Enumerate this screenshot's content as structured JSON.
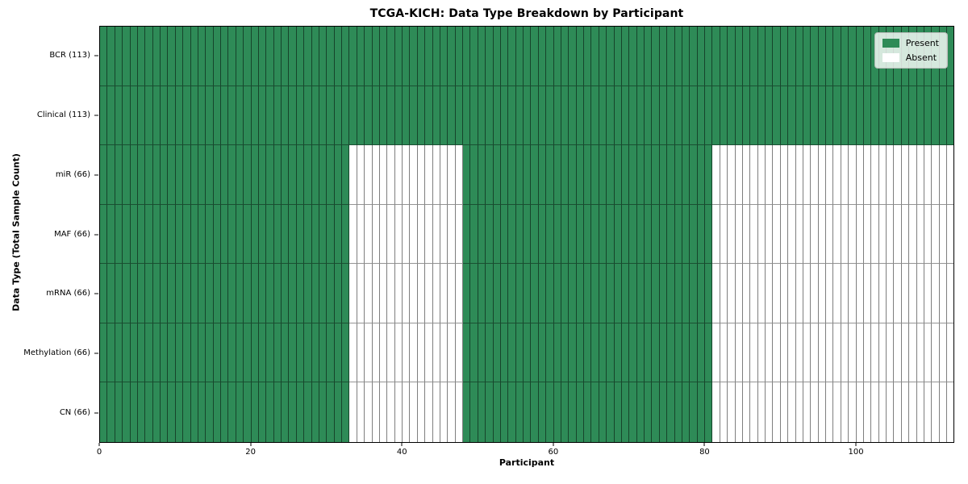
{
  "chart_data": {
    "type": "heatmap",
    "title": "TCGA-KICH: Data Type Breakdown by Participant",
    "xlabel": "Participant",
    "ylabel": "Data Type (Total Sample Count)",
    "n_participants": 113,
    "x_axis": {
      "min": 0,
      "max": 113,
      "ticks": [
        0,
        20,
        40,
        60,
        80,
        100
      ]
    },
    "rows": [
      {
        "id": "bcr",
        "label": "BCR (113)",
        "data_type": "BCR",
        "present_count": 113,
        "present_runs": [
          [
            0,
            113
          ]
        ]
      },
      {
        "id": "clinical",
        "label": "Clinical (113)",
        "data_type": "Clinical",
        "present_count": 113,
        "present_runs": [
          [
            0,
            113
          ]
        ]
      },
      {
        "id": "mir",
        "label": "miR (66)",
        "data_type": "miR",
        "present_count": 66,
        "present_runs": [
          [
            0,
            33
          ],
          [
            48,
            81
          ]
        ]
      },
      {
        "id": "maf",
        "label": "MAF (66)",
        "data_type": "MAF",
        "present_count": 66,
        "present_runs": [
          [
            0,
            33
          ],
          [
            48,
            81
          ]
        ]
      },
      {
        "id": "mrna",
        "label": "mRNA (66)",
        "data_type": "mRNA",
        "present_count": 66,
        "present_runs": [
          [
            0,
            33
          ],
          [
            48,
            81
          ]
        ]
      },
      {
        "id": "methylation",
        "label": "Methylation (66)",
        "data_type": "Methylation",
        "present_count": 66,
        "present_runs": [
          [
            0,
            33
          ],
          [
            48,
            81
          ]
        ]
      },
      {
        "id": "cn",
        "label": "CN (66)",
        "data_type": "CN",
        "present_count": 66,
        "present_runs": [
          [
            0,
            33
          ],
          [
            48,
            81
          ]
        ]
      }
    ],
    "legend": {
      "position": "upper right",
      "entries": [
        {
          "label": "Present",
          "color": "#2e8b57"
        },
        {
          "label": "Absent",
          "color": "#ffffff"
        }
      ]
    },
    "colors": {
      "present": "#2e8b57",
      "absent": "#ffffff",
      "grid_line": "rgba(0,0,0,0.5)",
      "frame": "#000000"
    },
    "layout": {
      "grid": true,
      "legend_position": "upper right"
    }
  }
}
